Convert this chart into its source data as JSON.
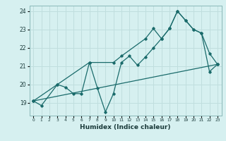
{
  "xlabel": "Humidex (Indice chaleur)",
  "ylabel": "",
  "bg_color": "#d6f0f0",
  "grid_color": "#c0dede",
  "line_color": "#1a6b6b",
  "xlim": [
    -0.5,
    23.5
  ],
  "ylim": [
    18.3,
    24.3
  ],
  "yticks": [
    19,
    20,
    21,
    22,
    23,
    24
  ],
  "xticks": [
    0,
    1,
    2,
    3,
    4,
    5,
    6,
    7,
    8,
    9,
    10,
    11,
    12,
    13,
    14,
    15,
    16,
    17,
    18,
    19,
    20,
    21,
    22,
    23
  ],
  "series1_x": [
    0,
    1,
    3,
    4,
    5,
    6,
    7,
    8,
    9,
    10,
    11,
    12,
    13,
    14,
    15,
    16,
    17,
    18,
    19,
    20,
    21,
    22,
    23
  ],
  "series1_y": [
    19.1,
    18.85,
    20.0,
    19.85,
    19.5,
    19.5,
    21.2,
    19.8,
    18.5,
    19.5,
    21.2,
    21.55,
    21.05,
    21.5,
    22.0,
    22.5,
    23.05,
    24.0,
    23.5,
    23.0,
    22.8,
    20.7,
    21.1
  ],
  "series2_x": [
    0,
    23
  ],
  "series2_y": [
    19.1,
    21.1
  ],
  "series3_x": [
    0,
    3,
    7,
    10,
    11,
    14,
    15,
    16,
    17,
    18,
    19,
    20,
    21,
    22,
    23
  ],
  "series3_y": [
    19.1,
    20.0,
    21.2,
    21.2,
    21.55,
    22.5,
    23.05,
    22.5,
    23.05,
    24.0,
    23.5,
    23.0,
    22.8,
    21.7,
    21.1
  ],
  "xlabel_fontsize": 6.5,
  "xlabel_color": "#1a3a3a",
  "xtick_fontsize": 4.2,
  "ytick_fontsize": 5.5,
  "lw": 0.9,
  "ms": 1.8
}
